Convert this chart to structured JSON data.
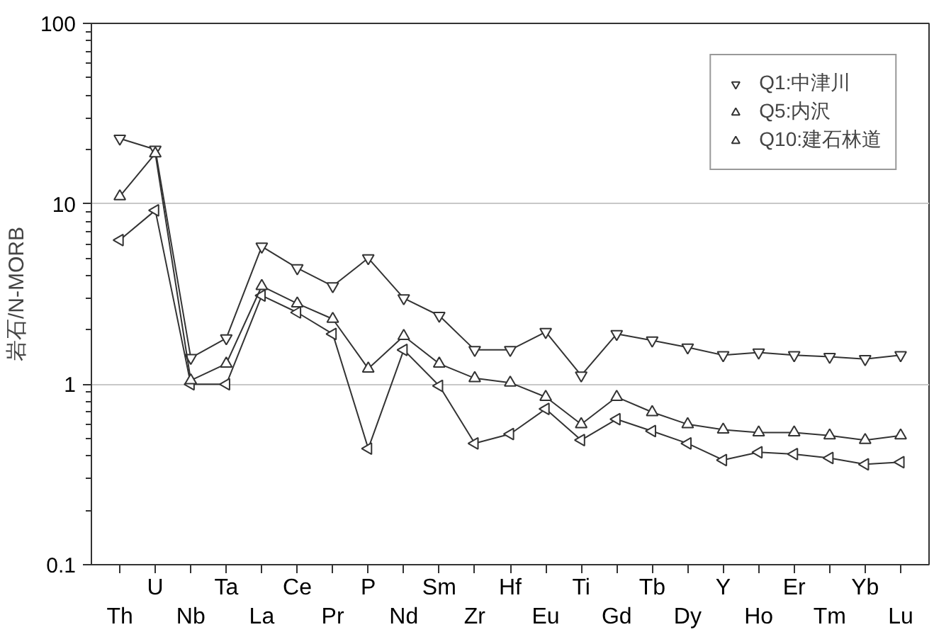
{
  "chart_data": {
    "type": "line",
    "ylabel": "岩石/N-MORB",
    "log": "y",
    "ylim": [
      0.1,
      100
    ],
    "yticks": [
      0.1,
      1,
      10,
      100
    ],
    "grid": "y",
    "legend": "top right",
    "line_style": "solid",
    "categories": [
      "Th",
      "U",
      "Nb",
      "Ta",
      "La",
      "Ce",
      "Pr",
      "P",
      "Nd",
      "Sm",
      "Zr",
      "Hf",
      "Eu",
      "Ti",
      "Gd",
      "Tb",
      "Dy",
      "Y",
      "Ho",
      "Er",
      "Tm",
      "Yb",
      "Lu"
    ],
    "series": [
      {
        "name": "Q1:中津川",
        "color": "#333333",
        "marker": "triangle_down",
        "values": [
          23,
          20,
          1.4,
          1.8,
          5.8,
          4.4,
          3.5,
          5.0,
          3.0,
          2.4,
          1.55,
          1.55,
          1.95,
          1.12,
          1.9,
          1.75,
          1.6,
          1.45,
          1.5,
          1.45,
          1.42,
          1.38,
          1.45
        ]
      },
      {
        "name": "Q5:内沢",
        "color": "#333333",
        "marker": "triangle_left",
        "values": [
          6.3,
          9.2,
          1.0,
          1.0,
          3.1,
          2.5,
          1.9,
          0.44,
          1.55,
          0.98,
          0.47,
          0.53,
          0.73,
          0.49,
          0.64,
          0.55,
          0.47,
          0.38,
          0.42,
          0.41,
          0.39,
          0.36,
          0.37
        ]
      },
      {
        "name": "Q10:建石林道",
        "color": "#333333",
        "marker": "triangle",
        "values": [
          11,
          19,
          1.05,
          1.3,
          3.5,
          2.8,
          2.3,
          1.22,
          1.85,
          1.3,
          1.08,
          1.02,
          0.85,
          0.6,
          0.85,
          0.7,
          0.6,
          0.56,
          0.54,
          0.54,
          0.52,
          0.49,
          0.52
        ]
      }
    ]
  }
}
